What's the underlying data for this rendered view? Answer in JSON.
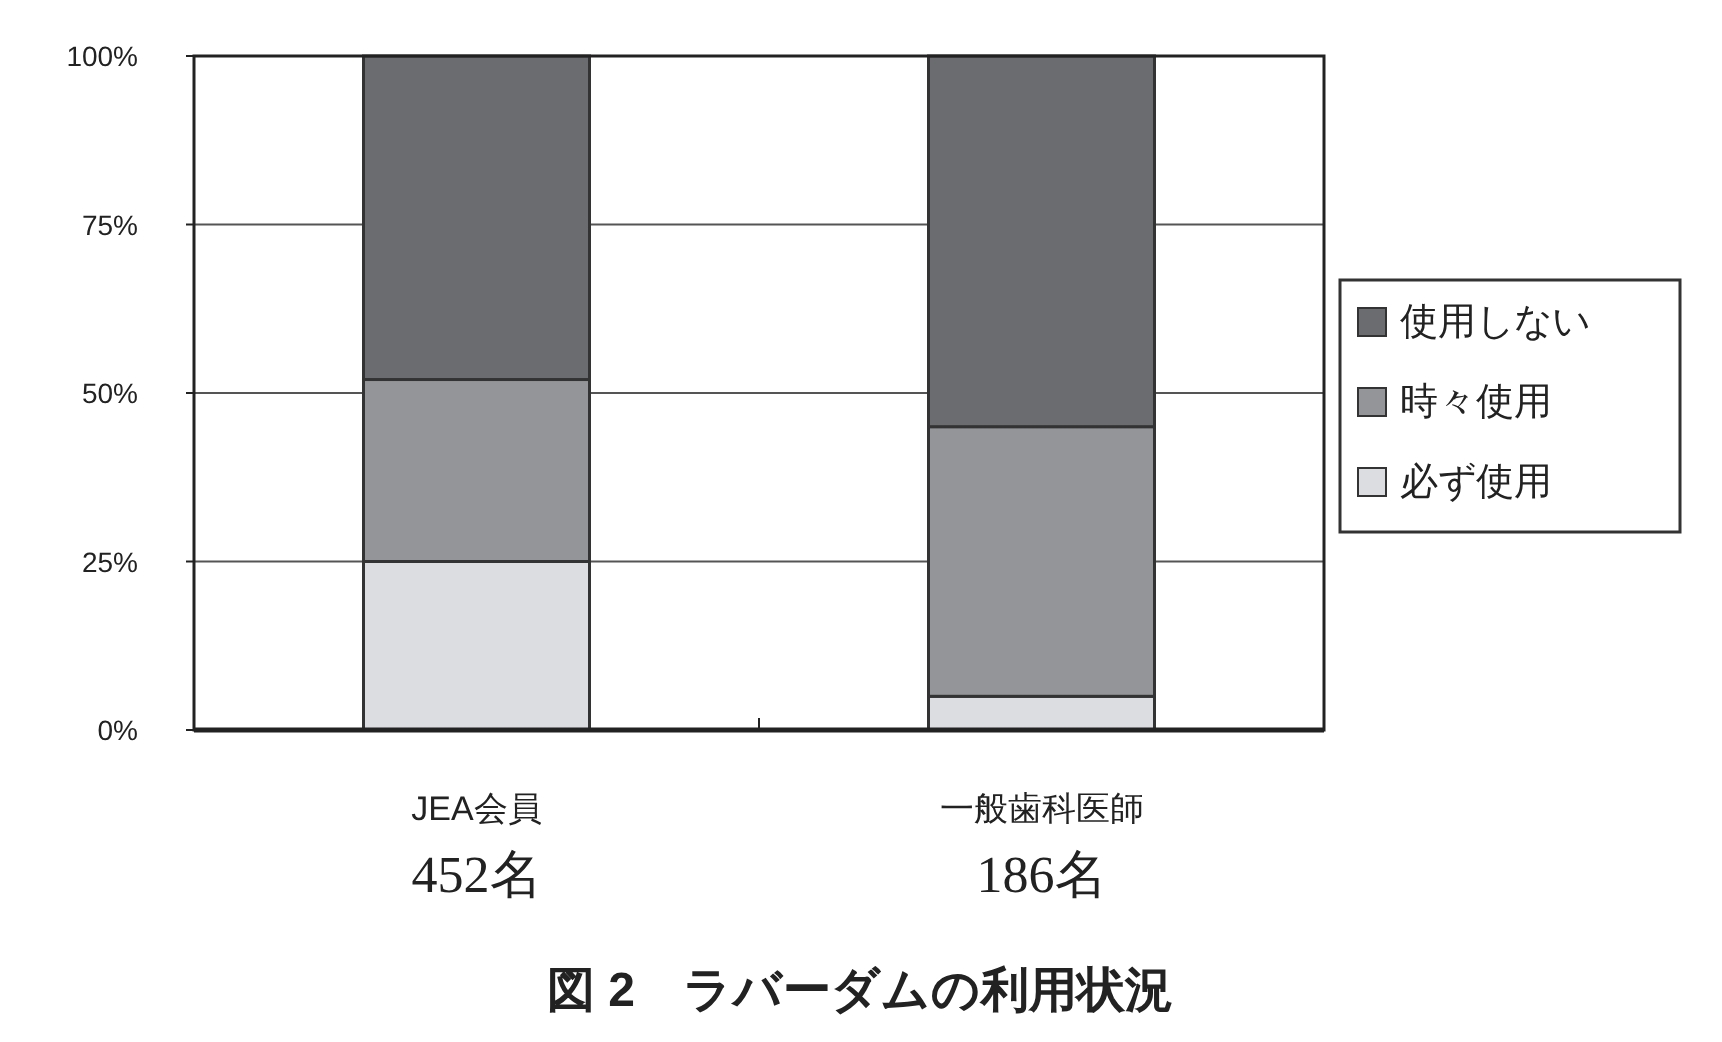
{
  "chart_data": {
    "type": "bar",
    "stacked": true,
    "title": "図 2　ラバーダムの利用状況",
    "categories": [
      "JEA会員\n452名",
      "一般歯科医師\n186名"
    ],
    "series": [
      {
        "name": "必ず使用",
        "color": "#dcdde0",
        "values": [
          25,
          5
        ]
      },
      {
        "name": "時々使用",
        "color": "#949598",
        "values": [
          27,
          40
        ]
      },
      {
        "name": "使用しない",
        "color": "#6b6c70",
        "values": [
          48,
          55
        ]
      }
    ],
    "ylim": [
      0,
      100
    ],
    "yticks": [
      {
        "value": 0,
        "label": "0%"
      },
      {
        "value": 25,
        "label": "25%"
      },
      {
        "value": 50,
        "label": "50%"
      },
      {
        "value": 75,
        "label": "75%"
      },
      {
        "value": 100,
        "label": "100%"
      }
    ],
    "grid": "y",
    "legend": "right"
  }
}
